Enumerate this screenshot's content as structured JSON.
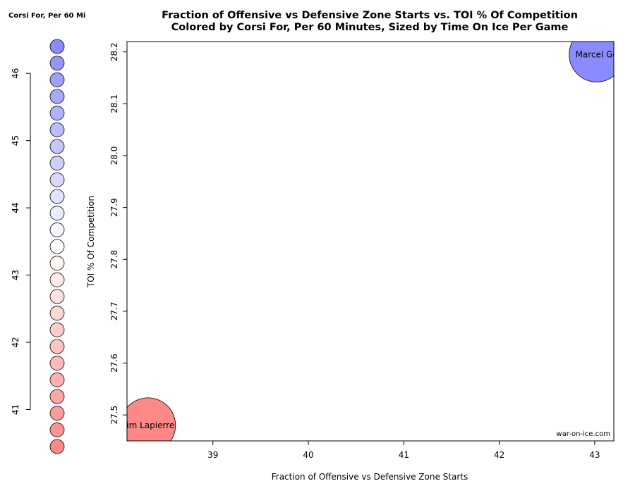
{
  "chart_data": {
    "type": "scatter",
    "title": "Fraction of Offensive vs Defensive Zone Starts vs. TOI % Of Competition",
    "subtitle": "Colored by Corsi For, Per 60 Minutes, Sized by Time On Ice Per Game",
    "xlabel": "Fraction of Offensive vs Defensive Zone Starts",
    "ylabel": "TOI % Of Competition",
    "xlim": [
      38.1,
      43.2
    ],
    "ylim": [
      27.45,
      28.22
    ],
    "x_ticks": [
      "39",
      "40",
      "41",
      "42",
      "43"
    ],
    "y_ticks": [
      "27.5",
      "27.6",
      "27.7",
      "27.8",
      "27.9",
      "28.0",
      "28.1",
      "28.2"
    ],
    "x_tick_values": [
      39,
      40,
      41,
      42,
      43
    ],
    "y_tick_values": [
      27.5,
      27.6,
      27.7,
      27.8,
      27.9,
      28.0,
      28.1,
      28.2
    ],
    "grid": false,
    "points": [
      {
        "label": "Marcel Go",
        "x": 43.02,
        "y": 28.195,
        "color": "#8b8bff"
      },
      {
        "label": "xim Lapierre",
        "x": 38.32,
        "y": 27.48,
        "color": "#ff8888"
      }
    ],
    "annotation": "war-on-ice.com",
    "color_legend": {
      "title": "Corsi For, Per 60 Mi",
      "range": [
        40.45,
        46.4
      ],
      "ticks": [
        "41",
        "42",
        "43",
        "44",
        "45",
        "46"
      ],
      "tick_values": [
        41,
        42,
        43,
        44,
        45,
        46
      ],
      "high_color": "#8b8bff",
      "mid_color": "#ffffff",
      "low_color": "#ff8888",
      "steps": 25
    }
  }
}
